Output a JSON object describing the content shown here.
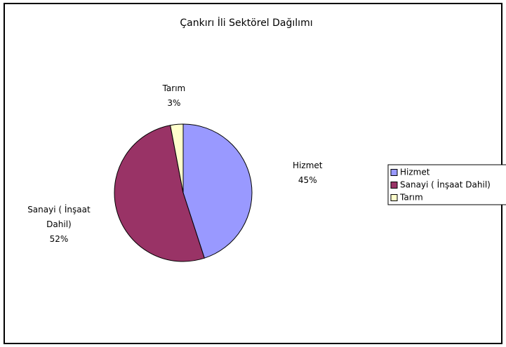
{
  "chart_data": {
    "type": "pie",
    "title": "Çankırı İli Sektörel Dağılımı",
    "categories": [
      "Hizmet",
      "Sanayi ( İnşaat Dahil)",
      "Tarım"
    ],
    "values": [
      45,
      52,
      3
    ],
    "value_labels": [
      "45%",
      "52%",
      "3%"
    ],
    "colors": [
      "#9999ff",
      "#993366",
      "#ffffcc"
    ],
    "legend": "right"
  }
}
